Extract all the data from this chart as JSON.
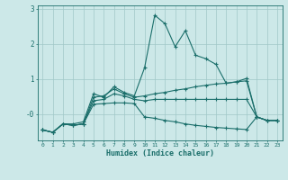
{
  "title": "",
  "xlabel": "Humidex (Indice chaleur)",
  "bg_color": "#cce8e8",
  "grid_color": "#a0c8c8",
  "line_color": "#1a6e6a",
  "x_values": [
    0,
    1,
    2,
    3,
    4,
    5,
    6,
    7,
    8,
    9,
    10,
    11,
    12,
    13,
    14,
    15,
    16,
    17,
    18,
    19,
    20,
    21,
    22,
    23
  ],
  "series": {
    "line1": [
      -0.45,
      -0.52,
      -0.28,
      -0.28,
      -0.22,
      0.58,
      0.48,
      0.78,
      0.62,
      0.52,
      1.32,
      2.82,
      2.58,
      1.92,
      2.38,
      1.68,
      1.58,
      1.42,
      0.88,
      0.92,
      1.02,
      -0.08,
      -0.18,
      -0.18
    ],
    "line2": [
      -0.45,
      -0.52,
      -0.28,
      -0.32,
      -0.28,
      0.48,
      0.52,
      0.72,
      0.58,
      0.48,
      0.52,
      0.58,
      0.62,
      0.68,
      0.72,
      0.78,
      0.82,
      0.86,
      0.88,
      0.92,
      0.95,
      -0.08,
      -0.18,
      -0.18
    ],
    "line3": [
      -0.45,
      -0.52,
      -0.28,
      -0.32,
      -0.28,
      0.38,
      0.42,
      0.58,
      0.52,
      0.42,
      0.38,
      0.42,
      0.42,
      0.42,
      0.42,
      0.42,
      0.42,
      0.42,
      0.42,
      0.42,
      0.42,
      -0.08,
      -0.18,
      -0.18
    ],
    "line4": [
      -0.45,
      -0.52,
      -0.28,
      -0.32,
      -0.28,
      0.28,
      0.3,
      0.32,
      0.32,
      0.3,
      -0.08,
      -0.12,
      -0.18,
      -0.22,
      -0.28,
      -0.32,
      -0.35,
      -0.38,
      -0.4,
      -0.42,
      -0.44,
      -0.08,
      -0.18,
      -0.18
    ]
  },
  "ylim": [
    -0.75,
    3.1
  ],
  "yticks": [
    0,
    1,
    2,
    3
  ],
  "ytick_labels": [
    "-0",
    "1",
    "2",
    "3"
  ],
  "figsize": [
    3.2,
    2.0
  ],
  "dpi": 100
}
